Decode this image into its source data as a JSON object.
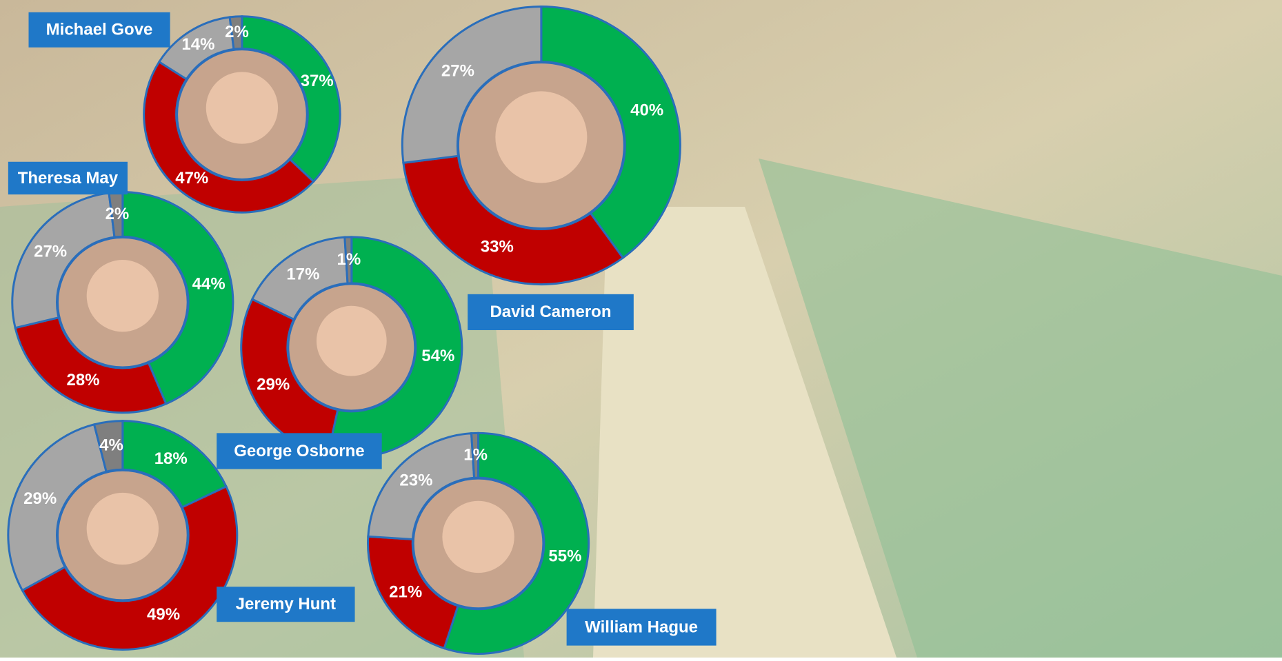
{
  "chart_data": [
    {
      "type": "donut",
      "title": "Michael Gove",
      "values": [
        37,
        47,
        14,
        2
      ],
      "value_labels": [
        "37%",
        "47%",
        "14%",
        "2%"
      ],
      "colors": [
        "#00b050",
        "#c00000",
        "#a6a6a6",
        "#7f7f7f"
      ]
    },
    {
      "type": "donut",
      "title": "David Cameron",
      "values": [
        40,
        33,
        27
      ],
      "value_labels": [
        "40%",
        "33%",
        "27%"
      ],
      "colors": [
        "#00b050",
        "#c00000",
        "#a6a6a6"
      ]
    },
    {
      "type": "donut",
      "title": "Theresa May",
      "values": [
        44,
        28,
        27,
        2
      ],
      "value_labels": [
        "44%",
        "28%",
        "27%",
        "2%"
      ],
      "colors": [
        "#00b050",
        "#c00000",
        "#a6a6a6",
        "#7f7f7f"
      ]
    },
    {
      "type": "donut",
      "title": "George Osborne",
      "values": [
        54,
        29,
        17,
        1
      ],
      "value_labels": [
        "54%",
        "29%",
        "17%",
        "1%"
      ],
      "colors": [
        "#00b050",
        "#c00000",
        "#a6a6a6",
        "#7f7f7f"
      ]
    },
    {
      "type": "donut",
      "title": "Jeremy Hunt",
      "values": [
        18,
        49,
        29,
        4
      ],
      "value_labels": [
        "18%",
        "49%",
        "29%",
        "4%"
      ],
      "colors": [
        "#00b050",
        "#c00000",
        "#a6a6a6",
        "#7f7f7f"
      ]
    },
    {
      "type": "donut",
      "title": "William Hague",
      "values": [
        55,
        21,
        23,
        1
      ],
      "value_labels": [
        "55%",
        "21%",
        "23%",
        "1%"
      ],
      "colors": [
        "#00b050",
        "#c00000",
        "#a6a6a6",
        "#7f7f7f"
      ]
    }
  ]
}
